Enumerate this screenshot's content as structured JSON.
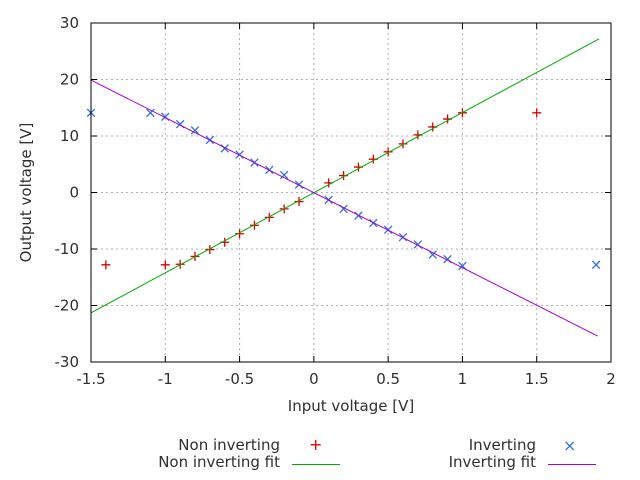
{
  "window": {
    "background": "#ffffff"
  },
  "palette": {
    "non_inverting": "#dc0000",
    "inverting": "#3273d8",
    "non_inverting_fit": "#00aa00",
    "inverting_fit": "#a400d8",
    "grid": "#b0b0b0",
    "frame": "#000000",
    "text": "#303030"
  },
  "chart_data": {
    "type": "scatter",
    "title": "",
    "xlabel": "Input voltage [V]",
    "ylabel": "Output voltage [V]",
    "xlim": [
      -1.5,
      2
    ],
    "ylim": [
      -30,
      30
    ],
    "xticks": [
      -1.5,
      -1,
      -0.5,
      0,
      0.5,
      1,
      1.5,
      2
    ],
    "xtick_labels": [
      "-1.5",
      "-1",
      "-0.5",
      "0",
      "0.5",
      "1",
      "1.5",
      "2"
    ],
    "yticks": [
      -30,
      -20,
      -10,
      0,
      10,
      20,
      30
    ],
    "ytick_labels": [
      "-30",
      "-20",
      "-10",
      "0",
      "10",
      "20",
      "30"
    ],
    "grid": true,
    "grid_style": "dashed",
    "legend_position": "below-plot-two-columns",
    "series": [
      {
        "name": "Non inverting",
        "kind": "scatter",
        "marker": "plus",
        "color": "#dc0000",
        "points": [
          [
            -1.4,
            -12.8
          ],
          [
            -1.0,
            -12.8
          ],
          [
            -0.9,
            -12.7
          ],
          [
            -0.8,
            -11.3
          ],
          [
            -0.7,
            -10.1
          ],
          [
            -0.6,
            -8.8
          ],
          [
            -0.5,
            -7.3
          ],
          [
            -0.4,
            -5.8
          ],
          [
            -0.3,
            -4.4
          ],
          [
            -0.2,
            -2.9
          ],
          [
            -0.1,
            -1.6
          ],
          [
            0.1,
            1.7
          ],
          [
            0.2,
            3.0
          ],
          [
            0.3,
            4.5
          ],
          [
            0.4,
            5.9
          ],
          [
            0.5,
            7.2
          ],
          [
            0.6,
            8.6
          ],
          [
            0.7,
            10.2
          ],
          [
            0.8,
            11.6
          ],
          [
            0.9,
            13.0
          ],
          [
            1.0,
            14.1
          ],
          [
            1.5,
            14.1
          ]
        ]
      },
      {
        "name": "Inverting",
        "kind": "scatter",
        "marker": "cross",
        "color": "#3273d8",
        "points": [
          [
            -1.5,
            14.1
          ],
          [
            -1.1,
            14.1
          ],
          [
            -1.0,
            13.4
          ],
          [
            -0.9,
            12.1
          ],
          [
            -0.8,
            11.0
          ],
          [
            -0.7,
            9.3
          ],
          [
            -0.6,
            7.8
          ],
          [
            -0.5,
            6.7
          ],
          [
            -0.4,
            5.3
          ],
          [
            -0.3,
            4.0
          ],
          [
            -0.2,
            3.1
          ],
          [
            -0.1,
            1.4
          ],
          [
            0.1,
            -1.3
          ],
          [
            0.2,
            -2.9
          ],
          [
            0.3,
            -4.1
          ],
          [
            0.4,
            -5.4
          ],
          [
            0.5,
            -6.6
          ],
          [
            0.6,
            -7.9
          ],
          [
            0.7,
            -9.2
          ],
          [
            0.8,
            -11.0
          ],
          [
            0.9,
            -11.8
          ],
          [
            1.0,
            -13.0
          ],
          [
            1.9,
            -12.8
          ]
        ]
      },
      {
        "name": "Non inverting fit",
        "kind": "line",
        "color": "#00aa00",
        "points": [
          [
            -1.5,
            -21.3
          ],
          [
            1.92,
            27.2
          ]
        ]
      },
      {
        "name": "Inverting fit",
        "kind": "line",
        "color": "#a400d8",
        "points": [
          [
            -1.5,
            19.9
          ],
          [
            1.91,
            -25.4
          ]
        ]
      }
    ]
  },
  "legend": {
    "entries": [
      {
        "label": "Non inverting",
        "marker": "+",
        "color": "#dc0000"
      },
      {
        "label": "Non inverting fit",
        "marker": "line",
        "color": "#00aa00"
      },
      {
        "label": "Inverting",
        "marker": "×",
        "color": "#3273d8"
      },
      {
        "label": "Inverting fit",
        "marker": "line",
        "color": "#a400d8"
      }
    ]
  }
}
